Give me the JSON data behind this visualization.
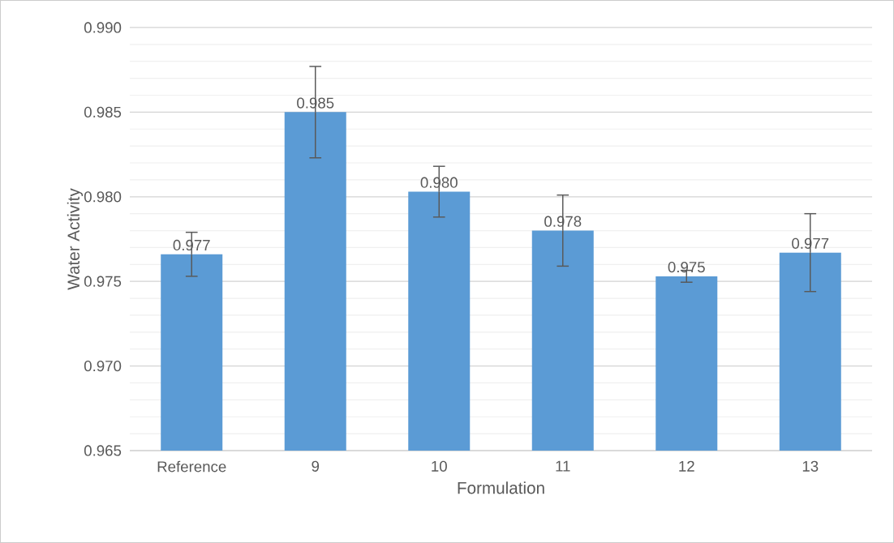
{
  "chart_data": {
    "type": "bar",
    "xlabel": "Formulation",
    "ylabel": "Water Activity",
    "categories": [
      "Reference",
      "9",
      "10",
      "11",
      "12",
      "13"
    ],
    "values": [
      0.9766,
      0.985,
      0.9803,
      0.978,
      0.9753,
      0.9767
    ],
    "errors": [
      0.0013,
      0.0027,
      0.0015,
      0.0021,
      0.00035,
      0.0023
    ],
    "value_labels": [
      "0.977",
      "0.985",
      "0.980",
      "0.978",
      "0.975",
      "0.977"
    ],
    "color": "#5b9bd5",
    "ylim": [
      0.965,
      0.99
    ],
    "yticks": [
      {
        "value": 0.965,
        "label": "0.965"
      },
      {
        "value": 0.97,
        "label": "0.970"
      },
      {
        "value": 0.975,
        "label": "0.975"
      },
      {
        "value": 0.98,
        "label": "0.980"
      },
      {
        "value": 0.985,
        "label": "0.985"
      },
      {
        "value": 0.99,
        "label": "0.990"
      }
    ],
    "grid": "y"
  }
}
